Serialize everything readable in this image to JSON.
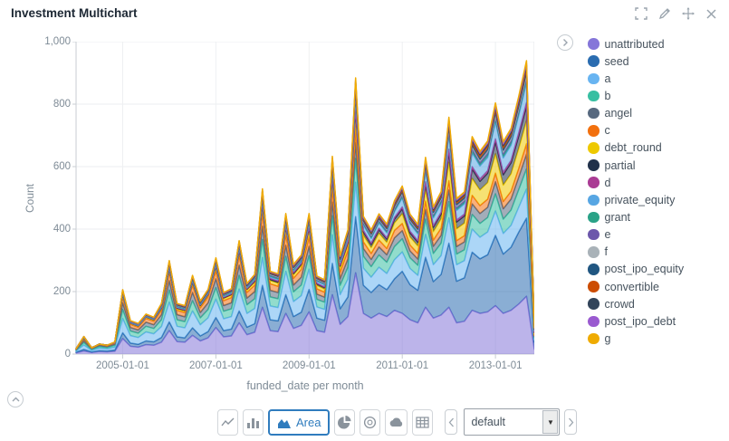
{
  "panel": {
    "title": "Investment Multichart"
  },
  "window_controls": {
    "icons": [
      "expand-icon",
      "pencil-icon",
      "move-icon",
      "close-icon"
    ]
  },
  "toolbar": {
    "chart_types": [
      "line",
      "vertical-bar",
      "area",
      "pie",
      "donut",
      "cloud",
      "table"
    ],
    "area_label": "Area",
    "preset_value": "default"
  },
  "chart_data": {
    "type": "area",
    "stacked": true,
    "xlabel": "funded_date per month",
    "ylabel": "Count",
    "ylim": [
      0,
      1000
    ],
    "grid": true,
    "legend_position": "right",
    "y_ticks": [
      0,
      200,
      400,
      600,
      800,
      1000
    ],
    "y_tick_labels": [
      "0",
      "200",
      "400",
      "600",
      "800",
      "1,000"
    ],
    "x_tick_positions": [
      6,
      18,
      30,
      42,
      54
    ],
    "x_tick_labels": [
      "2005-01-01",
      "2007-01-01",
      "2009-01-01",
      "2011-01-01",
      "2013-01-01"
    ],
    "x": [
      "2004-01",
      "2004-03",
      "2004-05",
      "2004-07",
      "2004-09",
      "2004-11",
      "2005-01",
      "2005-03",
      "2005-05",
      "2005-07",
      "2005-09",
      "2005-11",
      "2006-01",
      "2006-03",
      "2006-05",
      "2006-07",
      "2006-09",
      "2006-11",
      "2007-01",
      "2007-03",
      "2007-05",
      "2007-07",
      "2007-09",
      "2007-11",
      "2008-01",
      "2008-03",
      "2008-05",
      "2008-07",
      "2008-09",
      "2008-11",
      "2009-01",
      "2009-03",
      "2009-05",
      "2009-07",
      "2009-09",
      "2009-11",
      "2010-01",
      "2010-03",
      "2010-05",
      "2010-07",
      "2010-09",
      "2010-11",
      "2011-01",
      "2011-03",
      "2011-05",
      "2011-07",
      "2011-09",
      "2011-11",
      "2012-01",
      "2012-03",
      "2012-05",
      "2012-07",
      "2012-09",
      "2012-11",
      "2013-01",
      "2013-03",
      "2013-05",
      "2013-07",
      "2013-09",
      "2013-11"
    ],
    "series": [
      {
        "name": "unattributed",
        "color": "#8576d9",
        "values": [
          4,
          10,
          5,
          8,
          7,
          9,
          50,
          25,
          22,
          30,
          28,
          38,
          75,
          40,
          38,
          60,
          42,
          52,
          85,
          55,
          58,
          100,
          62,
          70,
          150,
          75,
          72,
          130,
          82,
          92,
          135,
          75,
          70,
          190,
          95,
          120,
          260,
          130,
          115,
          130,
          120,
          140,
          130,
          110,
          100,
          150,
          115,
          125,
          150,
          100,
          105,
          140,
          130,
          135,
          155,
          130,
          140,
          160,
          185,
          15
        ]
      },
      {
        "name": "seed",
        "color": "#2a6cb0",
        "values": [
          2,
          5,
          2,
          3,
          3,
          4,
          18,
          10,
          9,
          12,
          11,
          15,
          28,
          15,
          14,
          24,
          16,
          20,
          32,
          20,
          22,
          38,
          24,
          27,
          70,
          35,
          34,
          60,
          38,
          42,
          72,
          40,
          38,
          100,
          50,
          63,
          180,
          90,
          82,
          92,
          86,
          101,
          135,
          112,
          104,
          160,
          117,
          130,
          205,
          133,
          139,
          186,
          175,
          183,
          225,
          190,
          202,
          230,
          250,
          23
        ]
      },
      {
        "name": "a",
        "color": "#68b4f1",
        "values": [
          4,
          14,
          5,
          8,
          7,
          9,
          46,
          24,
          22,
          29,
          26,
          35,
          63,
          34,
          32,
          54,
          36,
          44,
          59,
          38,
          40,
          70,
          44,
          49,
          89,
          44,
          43,
          75,
          48,
          53,
          65,
          36,
          35,
          92,
          45,
          57,
          110,
          55,
          49,
          56,
          52,
          61,
          62,
          52,
          48,
          73,
          54,
          60,
          81,
          53,
          55,
          74,
          69,
          73,
          78,
          66,
          70,
          80,
          93,
          8
        ]
      },
      {
        "name": "b",
        "color": "#38bfa2",
        "values": [
          2,
          8,
          3,
          5,
          4,
          6,
          29,
          15,
          14,
          18,
          17,
          22,
          39,
          21,
          20,
          33,
          22,
          27,
          37,
          24,
          25,
          44,
          28,
          31,
          58,
          29,
          28,
          48,
          31,
          34,
          43,
          24,
          23,
          61,
          30,
          38,
          76,
          38,
          34,
          39,
          36,
          42,
          42,
          34,
          32,
          49,
          36,
          40,
          52,
          34,
          35,
          47,
          44,
          46,
          55,
          46,
          49,
          56,
          65,
          6
        ]
      },
      {
        "name": "angel",
        "color": "#57697f",
        "values": [
          2,
          6,
          2,
          4,
          3,
          4,
          21,
          11,
          10,
          13,
          12,
          16,
          30,
          16,
          15,
          26,
          17,
          21,
          28,
          18,
          19,
          33,
          21,
          23,
          42,
          21,
          20,
          35,
          22,
          25,
          30,
          17,
          16,
          43,
          21,
          27,
          51,
          25,
          23,
          26,
          24,
          28,
          26,
          22,
          20,
          31,
          23,
          25,
          37,
          24,
          25,
          34,
          32,
          33,
          39,
          33,
          35,
          40,
          47,
          4
        ]
      },
      {
        "name": "c",
        "color": "#f2700e",
        "values": [
          2,
          5,
          2,
          3,
          3,
          4,
          19,
          10,
          9,
          12,
          11,
          14,
          27,
          14,
          14,
          23,
          15,
          19,
          25,
          16,
          17,
          30,
          18,
          21,
          42,
          21,
          20,
          35,
          22,
          25,
          30,
          17,
          16,
          43,
          21,
          27,
          42,
          21,
          19,
          22,
          20,
          24,
          23,
          19,
          18,
          27,
          20,
          23,
          30,
          19,
          20,
          27,
          25,
          26,
          27,
          23,
          25,
          28,
          33,
          3
        ]
      },
      {
        "name": "debt_round",
        "color": "#eec900",
        "values": [
          1,
          2,
          1,
          1,
          1,
          1,
          6,
          3,
          3,
          4,
          4,
          5,
          9,
          5,
          5,
          8,
          5,
          6,
          11,
          7,
          7,
          13,
          8,
          9,
          21,
          10,
          10,
          18,
          11,
          12,
          20,
          11,
          10,
          27,
          14,
          17,
          42,
          21,
          19,
          22,
          20,
          24,
          31,
          26,
          24,
          37,
          27,
          30,
          59,
          38,
          40,
          54,
          50,
          53,
          62,
          53,
          56,
          64,
          74,
          6
        ]
      },
      {
        "name": "partial",
        "color": "#21314a",
        "values": [
          0,
          1,
          0,
          0,
          0,
          1,
          2,
          1,
          1,
          1,
          1,
          2,
          3,
          2,
          2,
          3,
          2,
          2,
          4,
          2,
          3,
          4,
          3,
          3,
          8,
          4,
          4,
          7,
          4,
          5,
          9,
          5,
          5,
          12,
          6,
          8,
          21,
          11,
          10,
          11,
          10,
          12,
          16,
          13,
          12,
          18,
          14,
          15,
          33,
          22,
          23,
          30,
          28,
          30,
          39,
          33,
          35,
          40,
          47,
          4
        ]
      },
      {
        "name": "d",
        "color": "#aa3b94",
        "values": [
          0,
          1,
          0,
          0,
          0,
          0,
          2,
          1,
          1,
          1,
          1,
          2,
          3,
          2,
          2,
          3,
          2,
          2,
          3,
          2,
          2,
          4,
          2,
          3,
          5,
          3,
          3,
          4,
          3,
          3,
          4,
          2,
          2,
          6,
          3,
          4,
          9,
          5,
          4,
          5,
          4,
          5,
          6,
          5,
          5,
          7,
          5,
          6,
          9,
          6,
          6,
          8,
          8,
          8,
          9,
          8,
          8,
          10,
          11,
          1
        ]
      },
      {
        "name": "private_equity",
        "color": "#57a6e3",
        "values": [
          0,
          1,
          0,
          0,
          0,
          0,
          2,
          1,
          1,
          1,
          1,
          2,
          4,
          2,
          2,
          3,
          2,
          3,
          5,
          3,
          3,
          6,
          3,
          4,
          11,
          5,
          5,
          9,
          6,
          6,
          13,
          7,
          7,
          18,
          9,
          11,
          34,
          17,
          15,
          17,
          16,
          19,
          29,
          24,
          22,
          34,
          25,
          28,
          48,
          31,
          33,
          44,
          41,
          43,
          55,
          46,
          49,
          56,
          65,
          6
        ]
      },
      {
        "name": "grant",
        "color": "#2aa287",
        "values": [
          0,
          1,
          0,
          0,
          0,
          0,
          2,
          1,
          1,
          1,
          1,
          2,
          3,
          2,
          2,
          3,
          2,
          2,
          3,
          2,
          2,
          4,
          2,
          3,
          5,
          3,
          3,
          4,
          3,
          3,
          4,
          2,
          2,
          6,
          3,
          4,
          8,
          4,
          4,
          4,
          4,
          5,
          5,
          4,
          4,
          6,
          5,
          5,
          7,
          5,
          5,
          7,
          6,
          7,
          8,
          7,
          7,
          8,
          9,
          1
        ]
      },
      {
        "name": "e",
        "color": "#6c57ab",
        "values": [
          0,
          1,
          0,
          0,
          0,
          0,
          2,
          1,
          1,
          1,
          1,
          2,
          3,
          2,
          2,
          3,
          2,
          2,
          3,
          2,
          2,
          4,
          2,
          3,
          5,
          3,
          3,
          4,
          3,
          3,
          4,
          2,
          2,
          6,
          3,
          4,
          8,
          4,
          4,
          4,
          4,
          5,
          5,
          4,
          4,
          6,
          5,
          5,
          7,
          5,
          5,
          7,
          6,
          7,
          8,
          7,
          7,
          8,
          9,
          1
        ]
      },
      {
        "name": "f",
        "color": "#a9b2b8",
        "values": [
          0,
          0,
          0,
          0,
          0,
          0,
          1,
          1,
          1,
          1,
          1,
          1,
          2,
          1,
          1,
          1,
          1,
          1,
          2,
          1,
          1,
          2,
          1,
          1,
          3,
          2,
          2,
          3,
          2,
          2,
          3,
          2,
          2,
          4,
          2,
          2,
          6,
          3,
          3,
          3,
          3,
          4,
          4,
          3,
          3,
          5,
          4,
          4,
          6,
          4,
          4,
          5,
          5,
          5,
          6,
          5,
          6,
          6,
          7,
          1
        ]
      },
      {
        "name": "post_ipo_equity",
        "color": "#205681",
        "values": [
          0,
          0,
          0,
          0,
          0,
          0,
          1,
          1,
          1,
          1,
          1,
          1,
          2,
          1,
          1,
          1,
          1,
          1,
          2,
          1,
          1,
          2,
          1,
          1,
          3,
          2,
          2,
          3,
          2,
          2,
          3,
          2,
          2,
          4,
          2,
          3,
          7,
          3,
          3,
          3,
          3,
          4,
          5,
          4,
          4,
          5,
          4,
          5,
          7,
          5,
          5,
          7,
          6,
          7,
          8,
          7,
          7,
          8,
          9,
          1
        ]
      },
      {
        "name": "convertible",
        "color": "#cc4c02",
        "values": [
          0,
          1,
          0,
          0,
          0,
          0,
          2,
          1,
          1,
          1,
          1,
          2,
          3,
          2,
          2,
          3,
          2,
          2,
          4,
          2,
          3,
          4,
          3,
          3,
          7,
          3,
          3,
          6,
          4,
          4,
          6,
          3,
          3,
          9,
          4,
          5,
          11,
          5,
          5,
          6,
          5,
          6,
          6,
          5,
          5,
          7,
          5,
          6,
          9,
          6,
          6,
          8,
          8,
          8,
          9,
          8,
          8,
          10,
          11,
          1
        ]
      },
      {
        "name": "crowd",
        "color": "#32445a",
        "values": [
          0,
          0,
          0,
          0,
          0,
          0,
          1,
          0,
          0,
          1,
          0,
          1,
          2,
          1,
          1,
          1,
          1,
          1,
          2,
          1,
          1,
          2,
          1,
          1,
          3,
          2,
          2,
          3,
          2,
          2,
          3,
          2,
          2,
          4,
          2,
          3,
          7,
          3,
          3,
          3,
          3,
          4,
          5,
          4,
          4,
          5,
          4,
          5,
          7,
          5,
          5,
          7,
          6,
          7,
          8,
          7,
          7,
          8,
          9,
          1
        ]
      },
      {
        "name": "post_ipo_debt",
        "color": "#9a5ad0",
        "values": [
          0,
          0,
          0,
          0,
          0,
          0,
          1,
          0,
          0,
          0,
          0,
          1,
          1,
          1,
          1,
          1,
          1,
          1,
          1,
          1,
          1,
          1,
          1,
          1,
          2,
          1,
          1,
          2,
          1,
          1,
          2,
          1,
          1,
          3,
          2,
          2,
          4,
          2,
          2,
          2,
          2,
          2,
          3,
          3,
          2,
          4,
          3,
          3,
          4,
          3,
          3,
          4,
          4,
          4,
          5,
          4,
          4,
          5,
          6,
          1
        ]
      },
      {
        "name": "g",
        "color": "#efab02",
        "values": [
          0,
          0,
          0,
          0,
          0,
          1,
          1,
          1,
          1,
          1,
          1,
          1,
          2,
          1,
          1,
          2,
          1,
          1,
          2,
          2,
          2,
          2,
          2,
          2,
          5,
          2,
          2,
          4,
          3,
          3,
          4,
          2,
          2,
          5,
          3,
          3,
          8,
          4,
          4,
          4,
          4,
          5,
          5,
          4,
          4,
          6,
          5,
          5,
          7,
          5,
          5,
          7,
          6,
          7,
          8,
          7,
          7,
          8,
          9,
          1
        ]
      }
    ]
  }
}
